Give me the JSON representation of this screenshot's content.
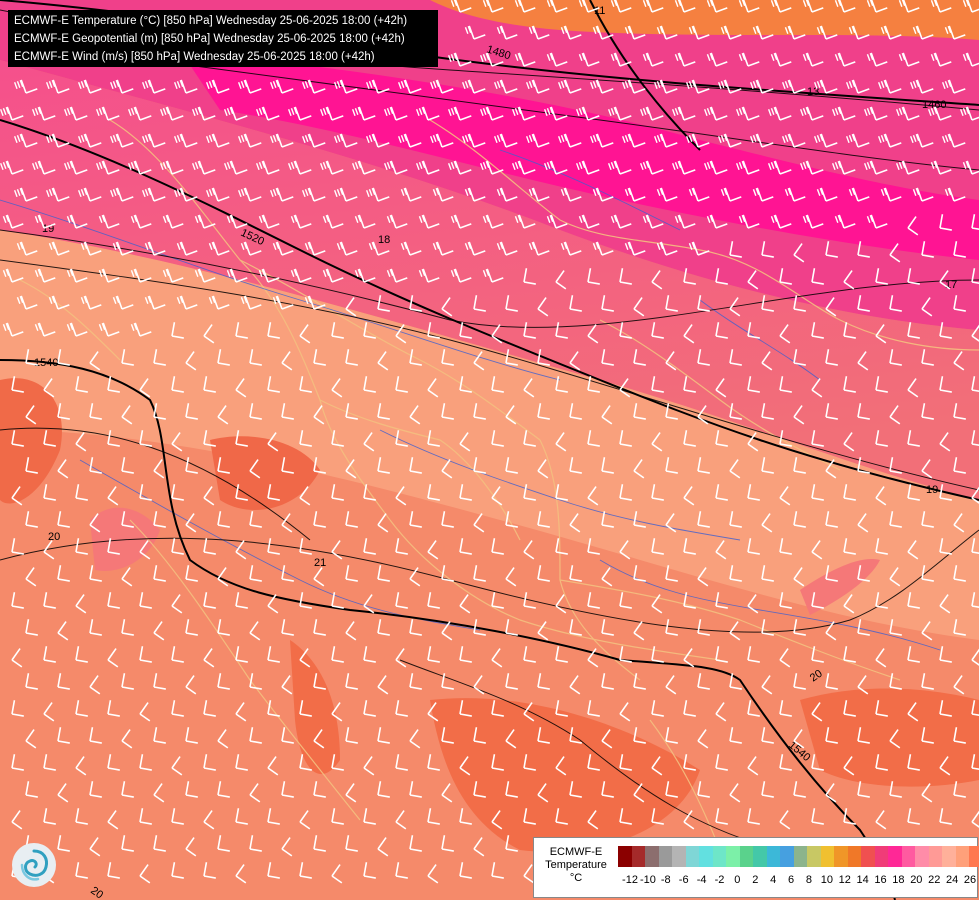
{
  "header": {
    "lines": [
      "ECMWF-E Temperature (°C) [850 hPa] Wednesday 25-06-2025 18:00 (+42h)",
      "ECMWF-E Geopotential (m) [850 hPa] Wednesday 25-06-2025 18:00 (+42h)",
      "ECMWF-E Wind (m/s) [850 hPa] Wednesday 25-06-2025 18:00 (+42h)"
    ]
  },
  "legend": {
    "title_line1": "ECMWF-E",
    "title_line2": "Temperature",
    "unit": "°C",
    "ticks": [
      "-12",
      "-10",
      "-8",
      "-6",
      "-4",
      "-2",
      "0",
      "2",
      "4",
      "6",
      "8",
      "10",
      "12",
      "14",
      "16",
      "18",
      "20",
      "22",
      "24",
      "26"
    ],
    "colors": [
      "#8b0000",
      "#a52a2a",
      "#8c6e6e",
      "#9a9a9a",
      "#b4b4b4",
      "#7fd6d6",
      "#62e0e0",
      "#6ee6c8",
      "#7cf0a8",
      "#5ad28c",
      "#44c8a8",
      "#3cb8d8",
      "#46a0e0",
      "#8cb48c",
      "#c8c864",
      "#f0c030",
      "#f09628",
      "#f07828",
      "#f05050",
      "#f03c78",
      "#ff2896",
      "#ff5aa0",
      "#ff8ca8",
      "#ff9a96",
      "#ffb09a",
      "#ffa07a",
      "#ff7850",
      "#f45a32",
      "#e03c28"
    ]
  },
  "contour_labels": {
    "temperature": [
      "11",
      "13",
      "17",
      "18",
      "19",
      "19",
      "20",
      "20",
      "20",
      "21"
    ],
    "geopotential": [
      "1460",
      "1480",
      "1520",
      "1540",
      "1540"
    ]
  },
  "colors": {
    "deep_pink": "#ff1493",
    "hot_pink": "#f0448a",
    "salmon": "#f58a6e",
    "orange": "#f07040",
    "wind_barb": "#ffffff",
    "borders": "#f4c080",
    "rivers": "#4060d0"
  },
  "icons": {
    "logo": "ecmwf-swirl-logo-icon"
  }
}
